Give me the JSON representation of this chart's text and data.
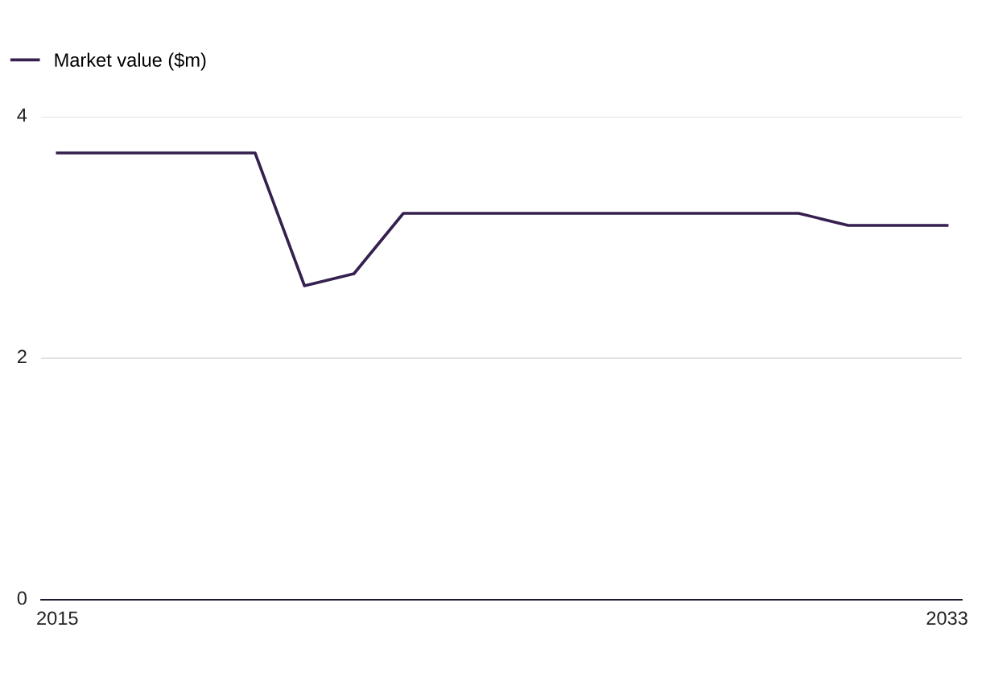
{
  "chart_data": {
    "type": "line",
    "x": [
      2015,
      2016,
      2017,
      2018,
      2019,
      2020,
      2021,
      2022,
      2023,
      2024,
      2025,
      2026,
      2027,
      2028,
      2029,
      2030,
      2031,
      2032,
      2033
    ],
    "series": [
      {
        "name": "Market value ($m)",
        "color": "#35204f",
        "values": [
          3.7,
          3.7,
          3.7,
          3.7,
          3.7,
          2.6,
          2.7,
          3.2,
          3.2,
          3.2,
          3.2,
          3.2,
          3.2,
          3.2,
          3.2,
          3.2,
          3.1,
          3.1,
          3.1
        ]
      }
    ],
    "xlim": [
      2014.67,
      2033.3
    ],
    "xticks": [
      2015,
      2033
    ],
    "ylim": [
      0,
      4
    ],
    "yticks": [
      0,
      2,
      4
    ],
    "grid": "y",
    "legend": "top left",
    "marker": "none",
    "line_style": "solid"
  }
}
